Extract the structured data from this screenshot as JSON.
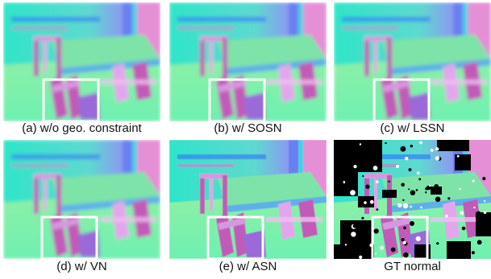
{
  "panels": [
    {
      "caption": "(a) w/o geo. constraint",
      "variant": "smooth"
    },
    {
      "caption": "(b) w/ SOSN",
      "variant": "smooth"
    },
    {
      "caption": "(c) w/ LSSN",
      "variant": "smooth"
    },
    {
      "caption": "(d) w/ VN",
      "variant": "smooth"
    },
    {
      "caption": "(e) w/ ASN",
      "variant": "sharp"
    },
    {
      "caption": "GT normal",
      "variant": "gt"
    }
  ],
  "colors": {
    "floor": "#6ff0b0",
    "wall_left": "#2ee5c8",
    "wall_right": "#b98cf0",
    "table_top": "#7ee3a8",
    "chair": "#c25ab8",
    "chair_light": "#d996e0",
    "cabinet": "#6a7ff0",
    "highlight_box": "#ffffff",
    "gt_hole": "#000000"
  }
}
